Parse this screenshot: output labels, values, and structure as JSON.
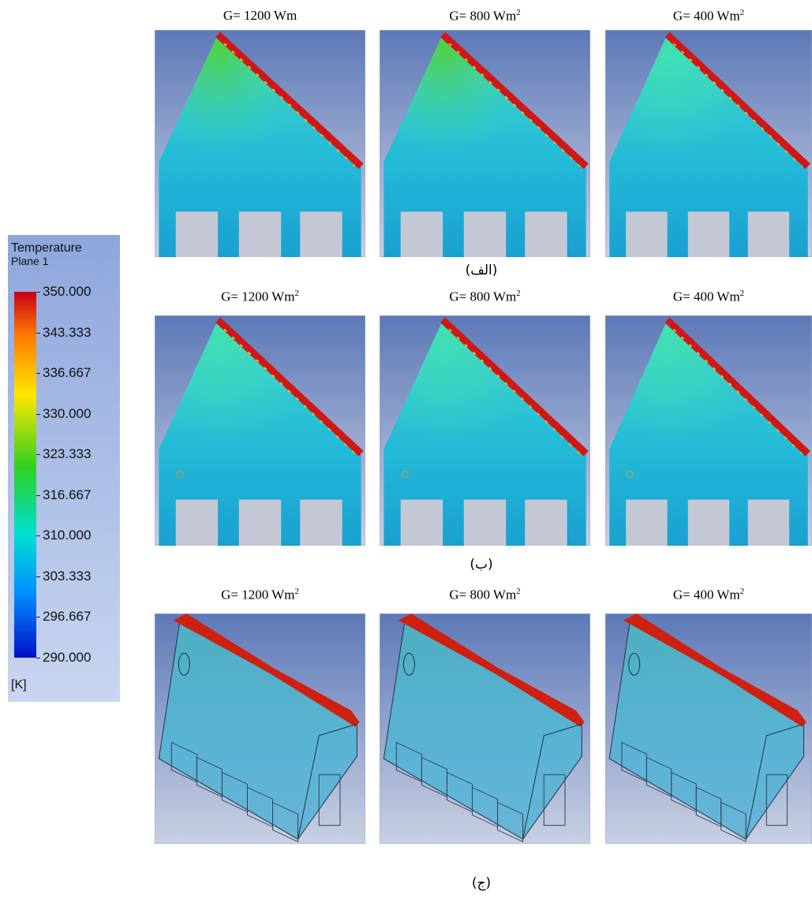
{
  "legend": {
    "title": "Temperature",
    "subtitle": "Plane 1",
    "ticks": [
      "350.000",
      "343.333",
      "336.667",
      "330.000",
      "323.333",
      "316.667",
      "310.000",
      "303.333",
      "296.667",
      "290.000"
    ],
    "unit": "[K]"
  },
  "rows": [
    {
      "label": "(الف)",
      "panels": [
        {
          "title": "G= 1200 Wm"
        },
        {
          "title": "G= 800 Wm",
          "sup": "2"
        },
        {
          "title": "G= 400 Wm",
          "sup": "2"
        }
      ]
    },
    {
      "label": "(ب)",
      "panels": [
        {
          "title": "G= 1200 Wm",
          "sup": "2"
        },
        {
          "title": "G= 800 Wm",
          "sup": "2"
        },
        {
          "title": "G= 400 Wm",
          "sup": "2"
        }
      ]
    },
    {
      "label": "(ج)",
      "panels": [
        {
          "title": "G= 1200 Wm",
          "sup": "2"
        },
        {
          "title": "G= 800 Wm",
          "sup": "2"
        },
        {
          "title": "G= 400 Wm",
          "sup": "2"
        }
      ]
    }
  ]
}
